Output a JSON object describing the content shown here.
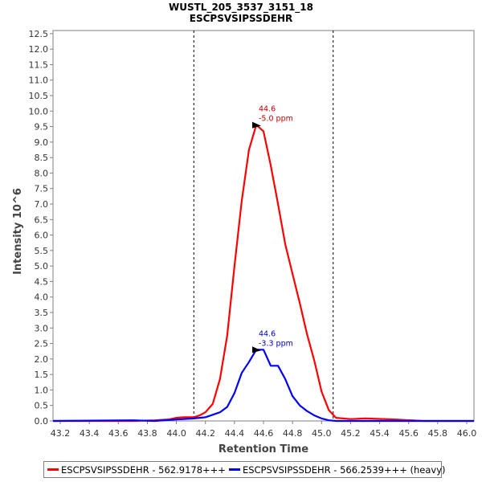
{
  "chart_data": {
    "type": "line",
    "title": "WUSTL_205_3537_3151_18",
    "subtitle": "ESCPSVSIPSSDEHR",
    "xlabel": "Retention Time",
    "ylabel": "Intensity 10^6",
    "xlim": [
      43.15,
      46.05
    ],
    "ylim": [
      0.0,
      12.6
    ],
    "x_ticks": [
      "43.2",
      "43.4",
      "43.6",
      "43.8",
      "44.0",
      "44.2",
      "44.4",
      "44.6",
      "44.8",
      "45.0",
      "45.2",
      "45.4",
      "45.6",
      "45.8",
      "46.0"
    ],
    "x_tick_values": [
      43.2,
      43.4,
      43.6,
      43.8,
      44.0,
      44.2,
      44.4,
      44.6,
      44.8,
      45.0,
      45.2,
      45.4,
      45.6,
      45.8,
      46.0
    ],
    "y_ticks": [
      "0.0",
      "0.5",
      "1.0",
      "1.5",
      "2.0",
      "2.5",
      "3.0",
      "3.5",
      "4.0",
      "4.5",
      "5.0",
      "5.5",
      "6.0",
      "6.5",
      "7.0",
      "7.5",
      "8.0",
      "8.5",
      "9.0",
      "9.5",
      "10.0",
      "10.5",
      "11.0",
      "11.5",
      "12.0",
      "12.5"
    ],
    "y_tick_values": [
      0.0,
      0.5,
      1.0,
      1.5,
      2.0,
      2.5,
      3.0,
      3.5,
      4.0,
      4.5,
      5.0,
      5.5,
      6.0,
      6.5,
      7.0,
      7.5,
      8.0,
      8.5,
      9.0,
      9.5,
      10.0,
      10.5,
      11.0,
      11.5,
      12.0,
      12.5
    ],
    "boundaries": [
      44.12,
      45.08
    ],
    "series": [
      {
        "name": "ESCPSVSIPSSDEHR - 562.9178+++",
        "color": "#ff0000",
        "x": [
          43.15,
          43.7,
          43.85,
          43.95,
          44.0,
          44.05,
          44.12,
          44.16,
          44.2,
          44.25,
          44.3,
          44.35,
          44.4,
          44.45,
          44.5,
          44.55,
          44.6,
          44.65,
          44.7,
          44.75,
          44.8,
          44.85,
          44.9,
          44.95,
          45.0,
          45.05,
          45.1,
          45.2,
          45.3,
          45.5,
          45.7,
          46.05
        ],
        "y": [
          0.0,
          0.0,
          0.02,
          0.05,
          0.1,
          0.12,
          0.12,
          0.18,
          0.28,
          0.55,
          1.35,
          2.75,
          5.0,
          7.1,
          8.75,
          9.55,
          9.35,
          8.25,
          7.0,
          5.7,
          4.75,
          3.8,
          2.8,
          1.95,
          0.95,
          0.35,
          0.1,
          0.06,
          0.08,
          0.05,
          0.0,
          0.0
        ]
      },
      {
        "name": "ESCPSVSIPSSDEHR - 566.2539+++ (heavy)",
        "color": "#0000ff",
        "x": [
          43.15,
          43.7,
          43.85,
          43.95,
          44.0,
          44.05,
          44.12,
          44.16,
          44.2,
          44.25,
          44.3,
          44.35,
          44.4,
          44.45,
          44.5,
          44.55,
          44.6,
          44.65,
          44.7,
          44.75,
          44.8,
          44.85,
          44.9,
          44.95,
          45.0,
          45.05,
          45.1,
          45.2,
          45.3,
          45.5,
          45.7,
          46.05
        ],
        "y": [
          0.0,
          0.02,
          0.0,
          0.03,
          0.05,
          0.06,
          0.08,
          0.1,
          0.12,
          0.2,
          0.28,
          0.45,
          0.9,
          1.55,
          1.9,
          2.3,
          2.3,
          1.78,
          1.78,
          1.35,
          0.8,
          0.5,
          0.32,
          0.18,
          0.08,
          0.02,
          0.0,
          0.0,
          0.0,
          0.0,
          0.0,
          0.0
        ]
      }
    ],
    "annotations": [
      {
        "series": 0,
        "x": 44.6,
        "y": 9.55,
        "label_rt": "44.6",
        "label_ppm": "-5.0 ppm",
        "color": "#c00000"
      },
      {
        "series": 1,
        "x": 44.6,
        "y": 2.3,
        "label_rt": "44.6",
        "label_ppm": "-3.3 ppm",
        "color": "#0000c0"
      }
    ]
  }
}
